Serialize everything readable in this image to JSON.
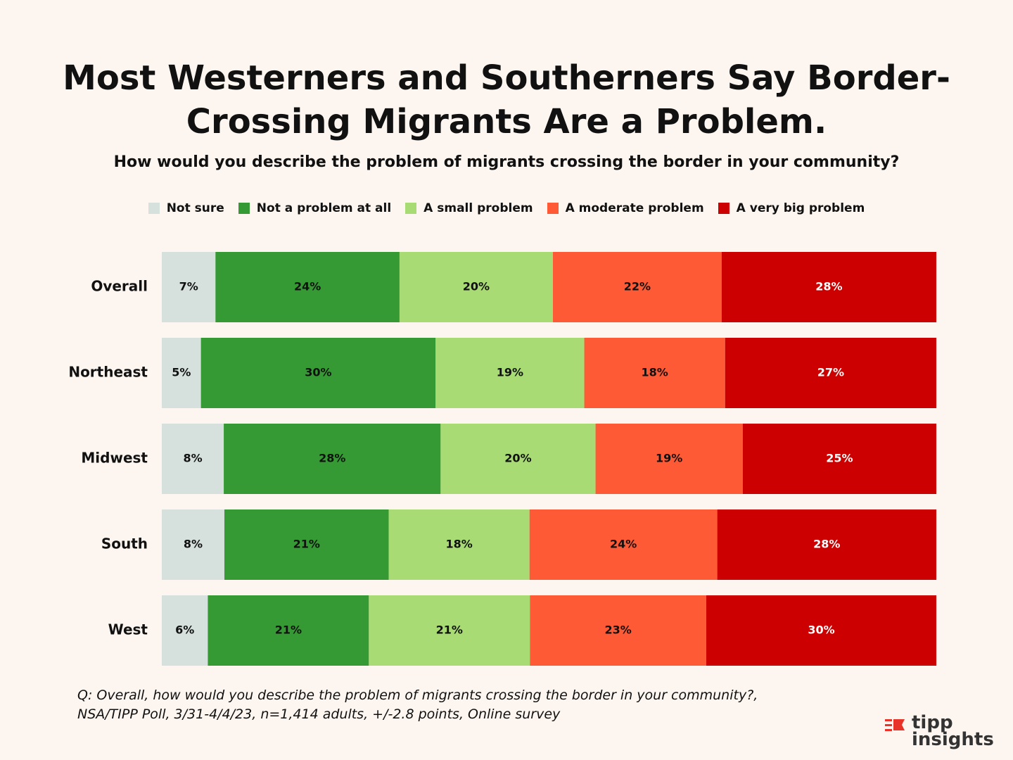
{
  "chart_data": {
    "type": "bar",
    "orientation": "horizontal",
    "stacked": true,
    "title_lines": [
      "Most Westerners and Southerners Say Border-",
      "Crossing Migrants Are a Problem."
    ],
    "subtitle": "How would you describe the problem of migrants crossing the border in your community?",
    "categories": [
      "Overall",
      "Northeast",
      "Midwest",
      "South",
      "West"
    ],
    "series": [
      {
        "name": "Not sure",
        "color": "#d6e1dd",
        "label_color": "#111111",
        "values": [
          7,
          5,
          8,
          8,
          6
        ]
      },
      {
        "name": "Not a problem at all",
        "color": "#359a34",
        "label_color": "#111111",
        "values": [
          24,
          30,
          28,
          21,
          21
        ]
      },
      {
        "name": "A small problem",
        "color": "#a9db74",
        "label_color": "#111111",
        "values": [
          20,
          19,
          20,
          18,
          21
        ]
      },
      {
        "name": "A moderate problem",
        "color": "#ff5a36",
        "label_color": "#111111",
        "values": [
          22,
          18,
          19,
          24,
          23
        ]
      },
      {
        "name": "A very big problem",
        "color": "#cc0000",
        "label_color": "#ffffff",
        "values": [
          28,
          27,
          25,
          28,
          30
        ]
      }
    ],
    "value_suffix": "%",
    "legend_position": "top-center",
    "xlabel": "",
    "ylabel": "",
    "xlim": [
      0,
      100
    ],
    "grid": false
  },
  "footnote": {
    "line1": "Q: Overall, how would you describe the problem of migrants crossing the border in your community?,",
    "line2": "NSA/TIPP Poll, 3/31-4/4/23, n=1,414 adults, +/-2.8 points, Online survey"
  },
  "logo": {
    "word1": "tipp",
    "word2": "insights",
    "accent_color": "#e8332a"
  }
}
